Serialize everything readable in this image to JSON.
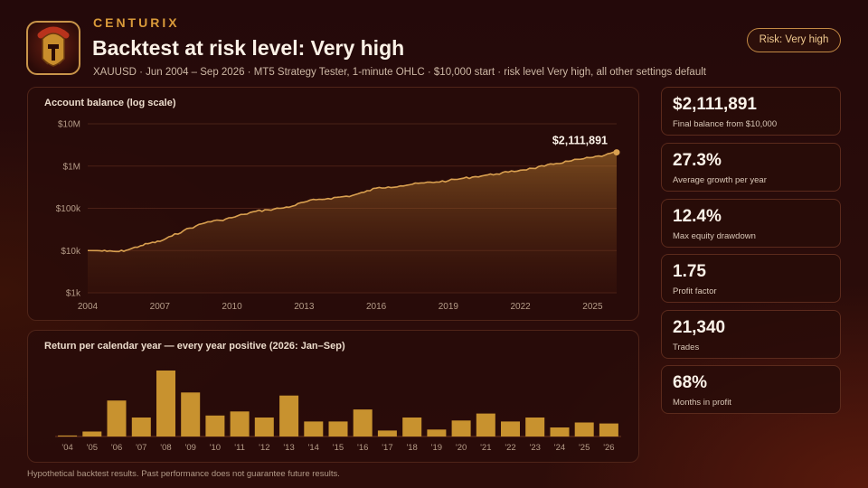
{
  "header": {
    "brand": "CENTURIX",
    "title": "Backtest at risk level: Very high",
    "subtitle": "XAUUSD · Jun 2004 – Sep 2026 · MT5 Strategy Tester, 1-minute OHLC · $10,000 start · risk level Very high, all other settings default",
    "risk_badge": "Risk: Very high",
    "logo_icon": "spartan-helmet-icon"
  },
  "colors": {
    "accent": "#c8922f",
    "background": "#2a0c0a",
    "panel_border": "#4f2418",
    "line": "#d9a050"
  },
  "stats": [
    {
      "value": "$2,111,891",
      "label": "Final balance from $10,000"
    },
    {
      "value": "27.3%",
      "label": "Average growth per year"
    },
    {
      "value": "12.4%",
      "label": "Max equity drawdown"
    },
    {
      "value": "1.75",
      "label": "Profit factor"
    },
    {
      "value": "21,340",
      "label": "Trades"
    },
    {
      "value": "68%",
      "label": "Months in profit"
    }
  ],
  "disclaimer": "Hypothetical backtest results. Past performance does not guarantee future results.",
  "chart_data": [
    {
      "type": "area",
      "title": "Account balance (log scale)",
      "yscale": "log",
      "ylim": [
        1000,
        10000000
      ],
      "yticks": [
        1000,
        10000,
        100000,
        1000000,
        10000000
      ],
      "ytick_labels": [
        "$1k",
        "$10k",
        "$100k",
        "$1M",
        "$10M"
      ],
      "xlim": [
        2004.0,
        2026.0
      ],
      "xticks": [
        2004,
        2007,
        2010,
        2013,
        2016,
        2019,
        2022,
        2025
      ],
      "xtick_labels": [
        "2004",
        "2007",
        "2010",
        "2013",
        "2016",
        "2019",
        "2022",
        "2025"
      ],
      "end_label": "$2,111,891",
      "grid": true,
      "x": [
        2004.4,
        2004.8,
        2005.3,
        2005.7,
        2006.2,
        2006.6,
        2007.0,
        2007.5,
        2008.0,
        2008.5,
        2009.0,
        2009.5,
        2010.0,
        2010.5,
        2011.0,
        2011.5,
        2012.0,
        2012.5,
        2013.0,
        2013.5,
        2014.0,
        2014.5,
        2015.0,
        2015.5,
        2016.0,
        2016.5,
        2017.0,
        2017.5,
        2018.0,
        2018.5,
        2019.0,
        2019.5,
        2020.0,
        2020.5,
        2021.0,
        2021.5,
        2022.0,
        2022.5,
        2023.0,
        2023.5,
        2024.0,
        2024.5,
        2025.0,
        2025.5,
        2026.0
      ],
      "y": [
        10000,
        9600,
        9500,
        10500,
        13000,
        15000,
        16500,
        22000,
        30000,
        38000,
        48000,
        52000,
        60000,
        72000,
        85000,
        92000,
        100000,
        112000,
        140000,
        160000,
        170000,
        185000,
        200000,
        240000,
        300000,
        320000,
        340000,
        370000,
        400000,
        420000,
        450000,
        500000,
        550000,
        600000,
        650000,
        720000,
        800000,
        880000,
        1000000,
        1150000,
        1300000,
        1450000,
        1600000,
        1800000,
        2111891
      ]
    },
    {
      "type": "bar",
      "title": "Return per calendar year — every year positive (2026: Jan–Sep)",
      "categories": [
        "'04",
        "'05",
        "'06",
        "'07",
        "'08",
        "'09",
        "'10",
        "'11",
        "'12",
        "'13",
        "'14",
        "'15",
        "'16",
        "'17",
        "'18",
        "'19",
        "'20",
        "'21",
        "'22",
        "'23",
        "'24",
        "'25",
        "'26"
      ],
      "values": [
        0.5,
        2.5,
        18,
        9.5,
        33,
        22,
        10.5,
        12.5,
        9.5,
        20.5,
        7.5,
        7.5,
        13.5,
        3,
        9.5,
        3.5,
        8,
        11.5,
        7.5,
        9.5,
        4.5,
        7,
        6.5
      ]
    }
  ]
}
